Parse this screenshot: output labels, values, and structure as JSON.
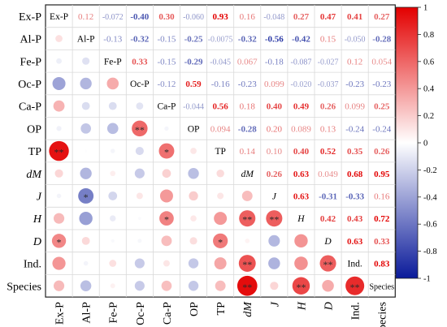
{
  "chart_data": {
    "type": "heatmap",
    "variables": [
      "Ex-P",
      "Al-P",
      "Fe-P",
      "Oc-P",
      "Ca-P",
      "OP",
      "TP",
      "dM",
      "J",
      "H",
      "D",
      "Ind.",
      "Species"
    ],
    "italic_variables": [
      "dM",
      "J",
      "H",
      "D"
    ],
    "lower_triangle": "colored circles sized by |r|",
    "diagonal": "variable name",
    "upper_triangle": "r value colored by sign and magnitude",
    "matrix": [
      [
        1,
        0.12,
        -0.072,
        -0.4,
        0.3,
        -0.06,
        0.93,
        0.16,
        -0.048,
        0.27,
        0.47,
        0.41,
        0.27
      ],
      [
        0.12,
        1,
        -0.13,
        -0.32,
        -0.15,
        -0.25,
        -0.0075,
        -0.32,
        -0.56,
        -0.42,
        0.15,
        -0.05,
        -0.28
      ],
      [
        -0.072,
        -0.13,
        1,
        0.33,
        -0.15,
        -0.29,
        -0.045,
        0.067,
        -0.18,
        -0.087,
        -0.027,
        0.12,
        0.054
      ],
      [
        -0.4,
        -0.32,
        0.33,
        1,
        -0.12,
        0.59,
        -0.16,
        -0.23,
        0.099,
        -0.02,
        -0.037,
        -0.23,
        -0.23
      ],
      [
        0.3,
        -0.15,
        -0.15,
        -0.12,
        1,
        -0.044,
        0.56,
        0.18,
        0.4,
        0.49,
        0.26,
        0.099,
        0.25
      ],
      [
        -0.06,
        -0.25,
        -0.29,
        0.59,
        -0.044,
        1,
        0.094,
        -0.28,
        0.2,
        0.089,
        0.13,
        -0.24,
        -0.24
      ],
      [
        0.93,
        -0.0075,
        -0.045,
        -0.16,
        0.56,
        0.094,
        1,
        0.14,
        0.1,
        0.4,
        0.52,
        0.35,
        0.26
      ],
      [
        0.16,
        -0.32,
        0.067,
        -0.23,
        0.18,
        -0.28,
        0.14,
        1,
        0.26,
        0.63,
        0.049,
        0.68,
        0.95
      ],
      [
        -0.048,
        -0.56,
        -0.18,
        0.099,
        0.4,
        0.2,
        0.1,
        0.26,
        1,
        0.63,
        -0.31,
        -0.33,
        0.16
      ],
      [
        0.27,
        -0.42,
        -0.087,
        -0.02,
        0.49,
        0.089,
        0.4,
        0.63,
        0.63,
        1,
        0.42,
        0.43,
        0.72
      ],
      [
        0.47,
        0.15,
        -0.027,
        -0.037,
        0.26,
        0.13,
        0.52,
        0.049,
        -0.31,
        0.42,
        1,
        0.63,
        0.33
      ],
      [
        0.41,
        -0.05,
        0.12,
        -0.23,
        0.099,
        -0.24,
        0.35,
        0.68,
        -0.33,
        0.43,
        0.63,
        1,
        0.83
      ],
      [
        0.27,
        -0.28,
        0.054,
        -0.23,
        0.25,
        -0.24,
        0.26,
        0.95,
        0.16,
        0.72,
        0.33,
        0.83,
        1
      ]
    ],
    "labels_upper": [
      [
        "",
        "0.12",
        "-0.072",
        "-0.40",
        "0.30",
        "-0.060",
        "0.93",
        "0.16",
        "-0.048",
        "0.27",
        "0.47",
        "0.41",
        "0.27"
      ],
      [
        "",
        "",
        "-0.13",
        "-0.32",
        "-0.15",
        "-0.25",
        "-0.0075",
        "-0.32",
        "-0.56",
        "-0.42",
        "0.15",
        "-0.050",
        "-0.28"
      ],
      [
        "",
        "",
        "",
        "0.33",
        "-0.15",
        "-0.29",
        "-0.045",
        "0.067",
        "-0.18",
        "-0.087",
        "-0.027",
        "0.12",
        "0.054"
      ],
      [
        "",
        "",
        "",
        "",
        "-0.12",
        "0.59",
        "-0.16",
        "-0.23",
        "0.099",
        "-0.020",
        "-0.037",
        "-0.23",
        "-0.23"
      ],
      [
        "",
        "",
        "",
        "",
        "",
        "-0.044",
        "0.56",
        "0.18",
        "0.40",
        "0.49",
        "0.26",
        "0.099",
        "0.25"
      ],
      [
        "",
        "",
        "",
        "",
        "",
        "",
        "0.094",
        "-0.28",
        "0.20",
        "0.089",
        "0.13",
        "-0.24",
        "-0.24"
      ],
      [
        "",
        "",
        "",
        "",
        "",
        "",
        "",
        "0.14",
        "0.10",
        "0.40",
        "0.52",
        "0.35",
        "0.26"
      ],
      [
        "",
        "",
        "",
        "",
        "",
        "",
        "",
        "",
        "0.26",
        "0.63",
        "0.049",
        "0.68",
        "0.95"
      ],
      [
        "",
        "",
        "",
        "",
        "",
        "",
        "",
        "",
        "",
        "0.63",
        "-0.31",
        "-0.33",
        "0.16"
      ],
      [
        "",
        "",
        "",
        "",
        "",
        "",
        "",
        "",
        "",
        "",
        "0.42",
        "0.43",
        "0.72"
      ],
      [
        "",
        "",
        "",
        "",
        "",
        "",
        "",
        "",
        "",
        "",
        "",
        "0.63",
        "0.33"
      ],
      [
        "",
        "",
        "",
        "",
        "",
        "",
        "",
        "",
        "",
        "",
        "",
        "",
        "0.83"
      ],
      [
        "",
        "",
        "",
        "",
        "",
        "",
        "",
        "",
        "",
        "",
        "",
        "",
        ""
      ]
    ],
    "significance": [
      {
        "row": "TP",
        "col": "Ex-P",
        "mark": "**"
      },
      {
        "row": "OP",
        "col": "Oc-P",
        "mark": "**"
      },
      {
        "row": "TP",
        "col": "Ca-P",
        "mark": "*"
      },
      {
        "row": "J",
        "col": "Al-P",
        "mark": "*"
      },
      {
        "row": "H",
        "col": "Ca-P",
        "mark": "*"
      },
      {
        "row": "H",
        "col": "dM",
        "mark": "**"
      },
      {
        "row": "H",
        "col": "J",
        "mark": "**"
      },
      {
        "row": "D",
        "col": "Ex-P",
        "mark": "*"
      },
      {
        "row": "D",
        "col": "TP",
        "mark": "*"
      },
      {
        "row": "Ind.",
        "col": "dM",
        "mark": "**"
      },
      {
        "row": "Ind.",
        "col": "D",
        "mark": "**"
      },
      {
        "row": "Species",
        "col": "dM",
        "mark": "**"
      },
      {
        "row": "Species",
        "col": "H",
        "mark": "**"
      },
      {
        "row": "Species",
        "col": "Ind.",
        "mark": "**"
      }
    ],
    "colorbar": {
      "range": [
        -1,
        1
      ],
      "ticks": [
        1,
        0.8,
        0.6,
        0.4,
        0.2,
        0,
        -0.2,
        -0.4,
        -0.6,
        -0.8,
        -1
      ],
      "tick_labels": [
        "1",
        "0.8",
        "0.6",
        "0.4",
        "0.2",
        "0",
        "-0.2",
        "-0.4",
        "-0.6",
        "-0.8",
        "-1"
      ],
      "colors": {
        "negative": "#0a1a9a",
        "neutral": "#ffffff",
        "positive": "#e30000"
      }
    }
  }
}
